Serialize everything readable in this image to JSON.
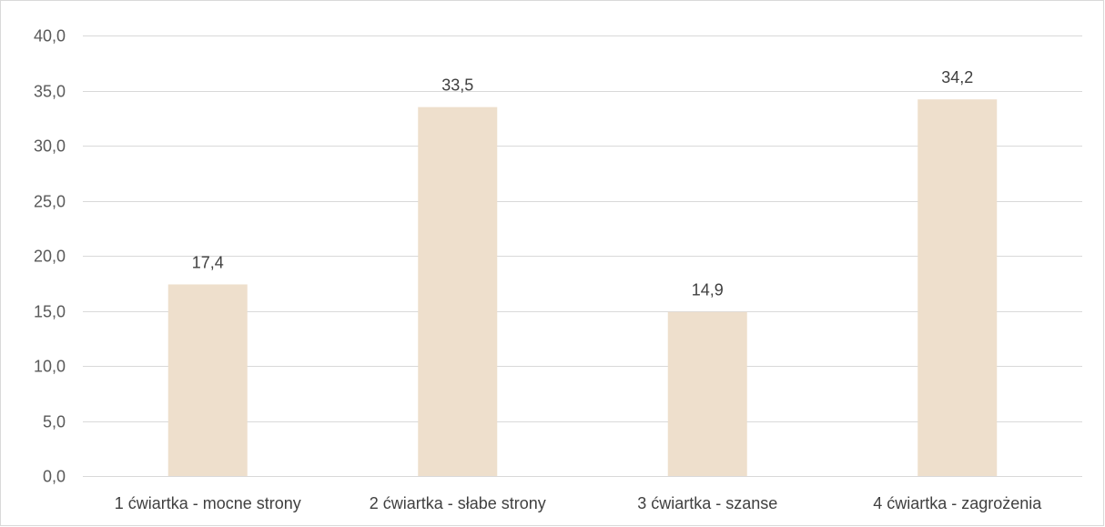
{
  "chart_data": {
    "type": "bar",
    "categories": [
      "1 ćwiartka - mocne strony",
      "2 ćwiartka - słabe strony",
      "3 ćwiartka - szanse",
      "4 ćwiartka - zagrożenia"
    ],
    "values": [
      17.4,
      33.5,
      14.9,
      34.2
    ],
    "value_labels": [
      "17,4",
      "33,5",
      "14,9",
      "34,2"
    ],
    "title": "",
    "xlabel": "",
    "ylabel": "",
    "ylim": [
      0,
      40
    ],
    "yticks": [
      "0,0",
      "5,0",
      "10,0",
      "15,0",
      "20,0",
      "25,0",
      "30,0",
      "35,0",
      "40,0"
    ],
    "grid": true,
    "legend": "none",
    "bar_color": "#eedfcc",
    "gridline_color": "#d9d9d9"
  }
}
